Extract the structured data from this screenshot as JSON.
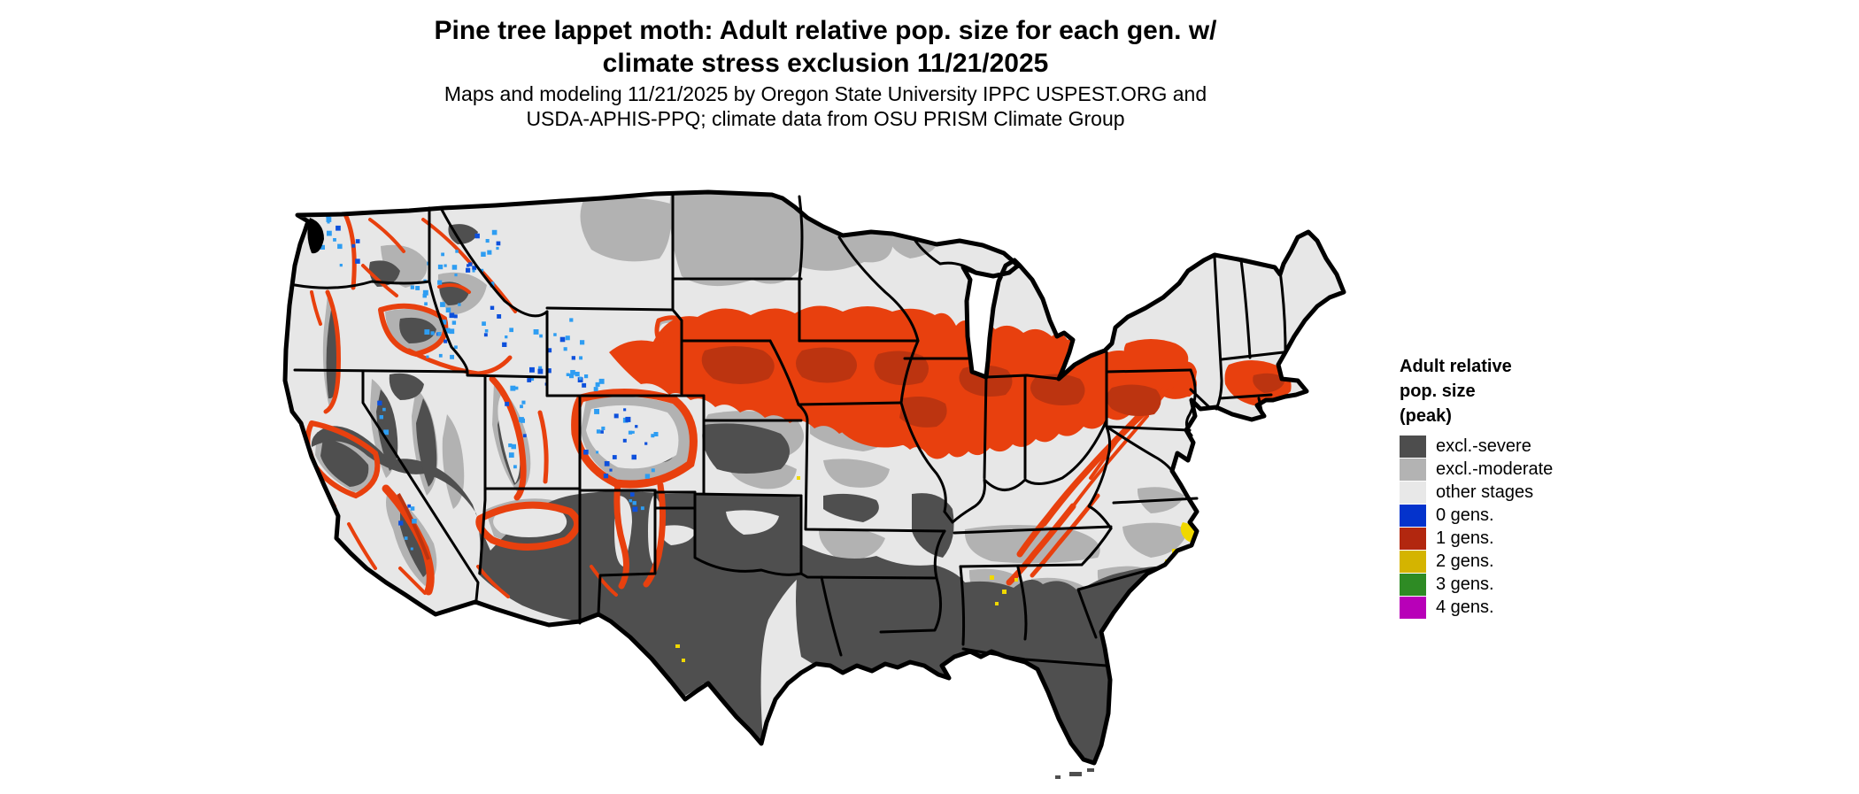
{
  "title": {
    "line1": "Pine tree lappet moth: Adult relative pop. size for each gen. w/",
    "line2": "climate stress exclusion 11/21/2025"
  },
  "subtitle": {
    "line1": "Maps and modeling 11/21/2025 by Oregon State University IPPC USPEST.ORG and",
    "line2": "USDA-APHIS-PPQ; climate data from OSU PRISM Climate Group"
  },
  "map": {
    "region": "contiguous United States",
    "kind": "raster risk map with state outlines"
  },
  "legend": {
    "title_lines": [
      "Adult relative",
      "pop. size",
      "(peak)"
    ],
    "items": [
      {
        "label": "excl.-severe",
        "color": "#4d4d4d"
      },
      {
        "label": "excl.-moderate",
        "color": "#b3b3b3"
      },
      {
        "label": "other stages",
        "color": "#e8e8e8"
      },
      {
        "label": "0 gens.",
        "color": "#0433cc"
      },
      {
        "label": "1 gens.",
        "color": "#b2270f"
      },
      {
        "label": "2 gens.",
        "color": "#d4b400"
      },
      {
        "label": "3 gens.",
        "color": "#2e8b24"
      },
      {
        "label": "4 gens.",
        "color": "#b800b8"
      }
    ]
  },
  "map_colors": {
    "background": "#ffffff",
    "other_stages_base": "#e7e7e7",
    "excl_moderate": "#b2b2b2",
    "excl_severe": "#4f4f4f",
    "gen1_bright": "#e8400e",
    "gen1_dark": "#bc3410",
    "gen0_blue_light": "#2e9df2",
    "gen0_blue_deep": "#0d50dc",
    "gen2_yellow": "#f0d800",
    "gen3_green": "#2e8b24",
    "state_border": "#000000"
  }
}
